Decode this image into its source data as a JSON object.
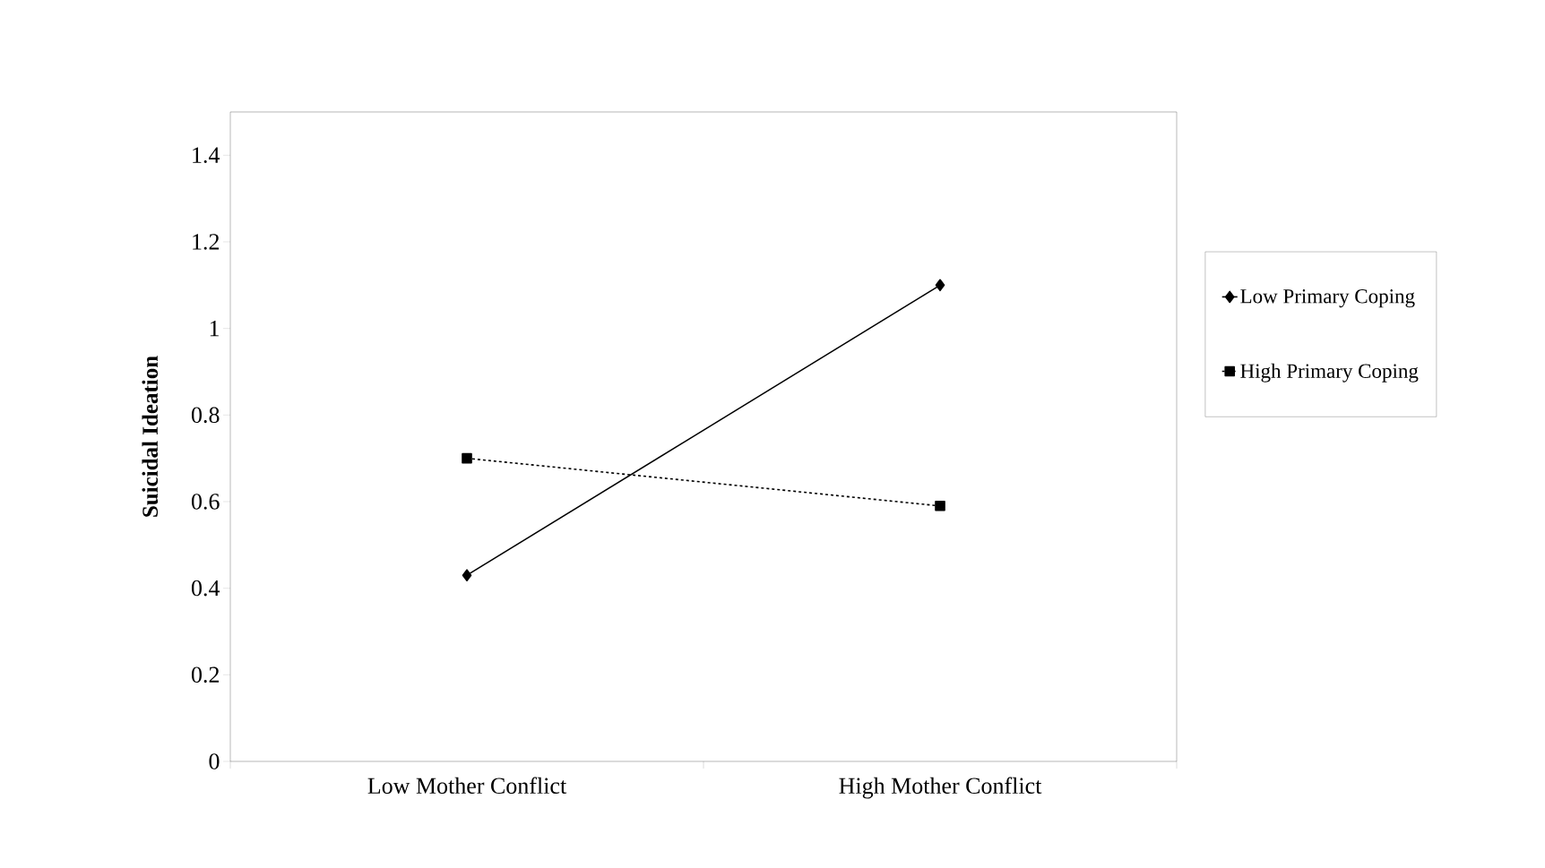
{
  "chart_data": {
    "type": "line",
    "ylabel": "Suicidal Ideation",
    "categories": [
      "Low Mother Conflict",
      "High Mother Conflict"
    ],
    "series": [
      {
        "name": "Low Primary Coping",
        "color": "#000000",
        "values": [
          0.43,
          1.1
        ],
        "marker": "diamond",
        "line_style": "solid"
      },
      {
        "name": "High Primary Coping",
        "color": "#000000",
        "values": [
          0.7,
          0.59
        ],
        "marker": "square",
        "line_style": "dashed"
      }
    ],
    "ylim": [
      0,
      1.5
    ],
    "yticks": [
      0,
      0.2,
      0.4,
      0.6,
      0.8,
      1,
      1.2,
      1.4
    ],
    "legend": "right",
    "grid": false
  }
}
